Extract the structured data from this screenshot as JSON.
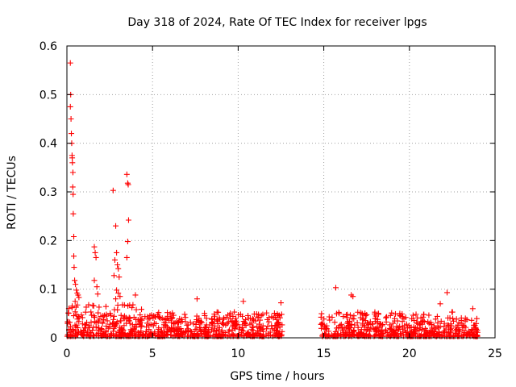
{
  "chart_data": {
    "type": "scatter",
    "title": "Day 318 of 2024, Rate Of TEC Index for receiver lpgs",
    "xlabel": "GPS time / hours",
    "ylabel": "ROTI / TECUs",
    "xlim": [
      0,
      25
    ],
    "ylim": [
      0,
      0.6
    ],
    "xticks": [
      "0",
      "5",
      "10",
      "15",
      "20",
      "25"
    ],
    "yticks": [
      "0",
      "0.1",
      "0.2",
      "0.3",
      "0.4",
      "0.5",
      "0.6"
    ],
    "grid": true,
    "marker": "plus",
    "color": "#ff0000",
    "data_gap_hours": [
      12.6,
      14.8
    ],
    "series": [
      {
        "name": "ROTI",
        "points": [
          [
            0.2,
            0.565
          ],
          [
            0.22,
            0.5
          ],
          [
            0.2,
            0.475
          ],
          [
            0.24,
            0.45
          ],
          [
            0.26,
            0.42
          ],
          [
            0.28,
            0.4
          ],
          [
            0.3,
            0.375
          ],
          [
            0.31,
            0.37
          ],
          [
            0.32,
            0.36
          ],
          [
            0.35,
            0.34
          ],
          [
            0.34,
            0.31
          ],
          [
            0.36,
            0.295
          ],
          [
            0.37,
            0.255
          ],
          [
            0.4,
            0.208
          ],
          [
            0.4,
            0.168
          ],
          [
            0.42,
            0.145
          ],
          [
            0.45,
            0.118
          ],
          [
            0.5,
            0.11
          ],
          [
            0.55,
            0.098
          ],
          [
            0.6,
            0.092
          ],
          [
            0.65,
            0.088
          ],
          [
            0.7,
            0.083
          ],
          [
            0.48,
            0.075
          ],
          [
            1.6,
            0.187
          ],
          [
            1.65,
            0.175
          ],
          [
            1.7,
            0.165
          ],
          [
            1.6,
            0.118
          ],
          [
            1.75,
            0.105
          ],
          [
            1.8,
            0.09
          ],
          [
            2.7,
            0.303
          ],
          [
            2.85,
            0.23
          ],
          [
            2.9,
            0.175
          ],
          [
            2.8,
            0.16
          ],
          [
            2.95,
            0.15
          ],
          [
            3.0,
            0.142
          ],
          [
            2.75,
            0.128
          ],
          [
            3.05,
            0.125
          ],
          [
            2.9,
            0.098
          ],
          [
            3.0,
            0.092
          ],
          [
            3.1,
            0.085
          ],
          [
            2.85,
            0.08
          ],
          [
            3.5,
            0.336
          ],
          [
            3.55,
            0.318
          ],
          [
            3.58,
            0.315
          ],
          [
            3.6,
            0.242
          ],
          [
            3.55,
            0.198
          ],
          [
            3.5,
            0.165
          ],
          [
            4.0,
            0.088
          ],
          [
            7.6,
            0.08
          ],
          [
            10.3,
            0.075
          ],
          [
            12.5,
            0.072
          ],
          [
            15.7,
            0.103
          ],
          [
            16.6,
            0.088
          ],
          [
            16.7,
            0.085
          ],
          [
            22.2,
            0.093
          ],
          [
            21.8,
            0.07
          ],
          [
            23.7,
            0.06
          ]
        ]
      }
    ]
  }
}
